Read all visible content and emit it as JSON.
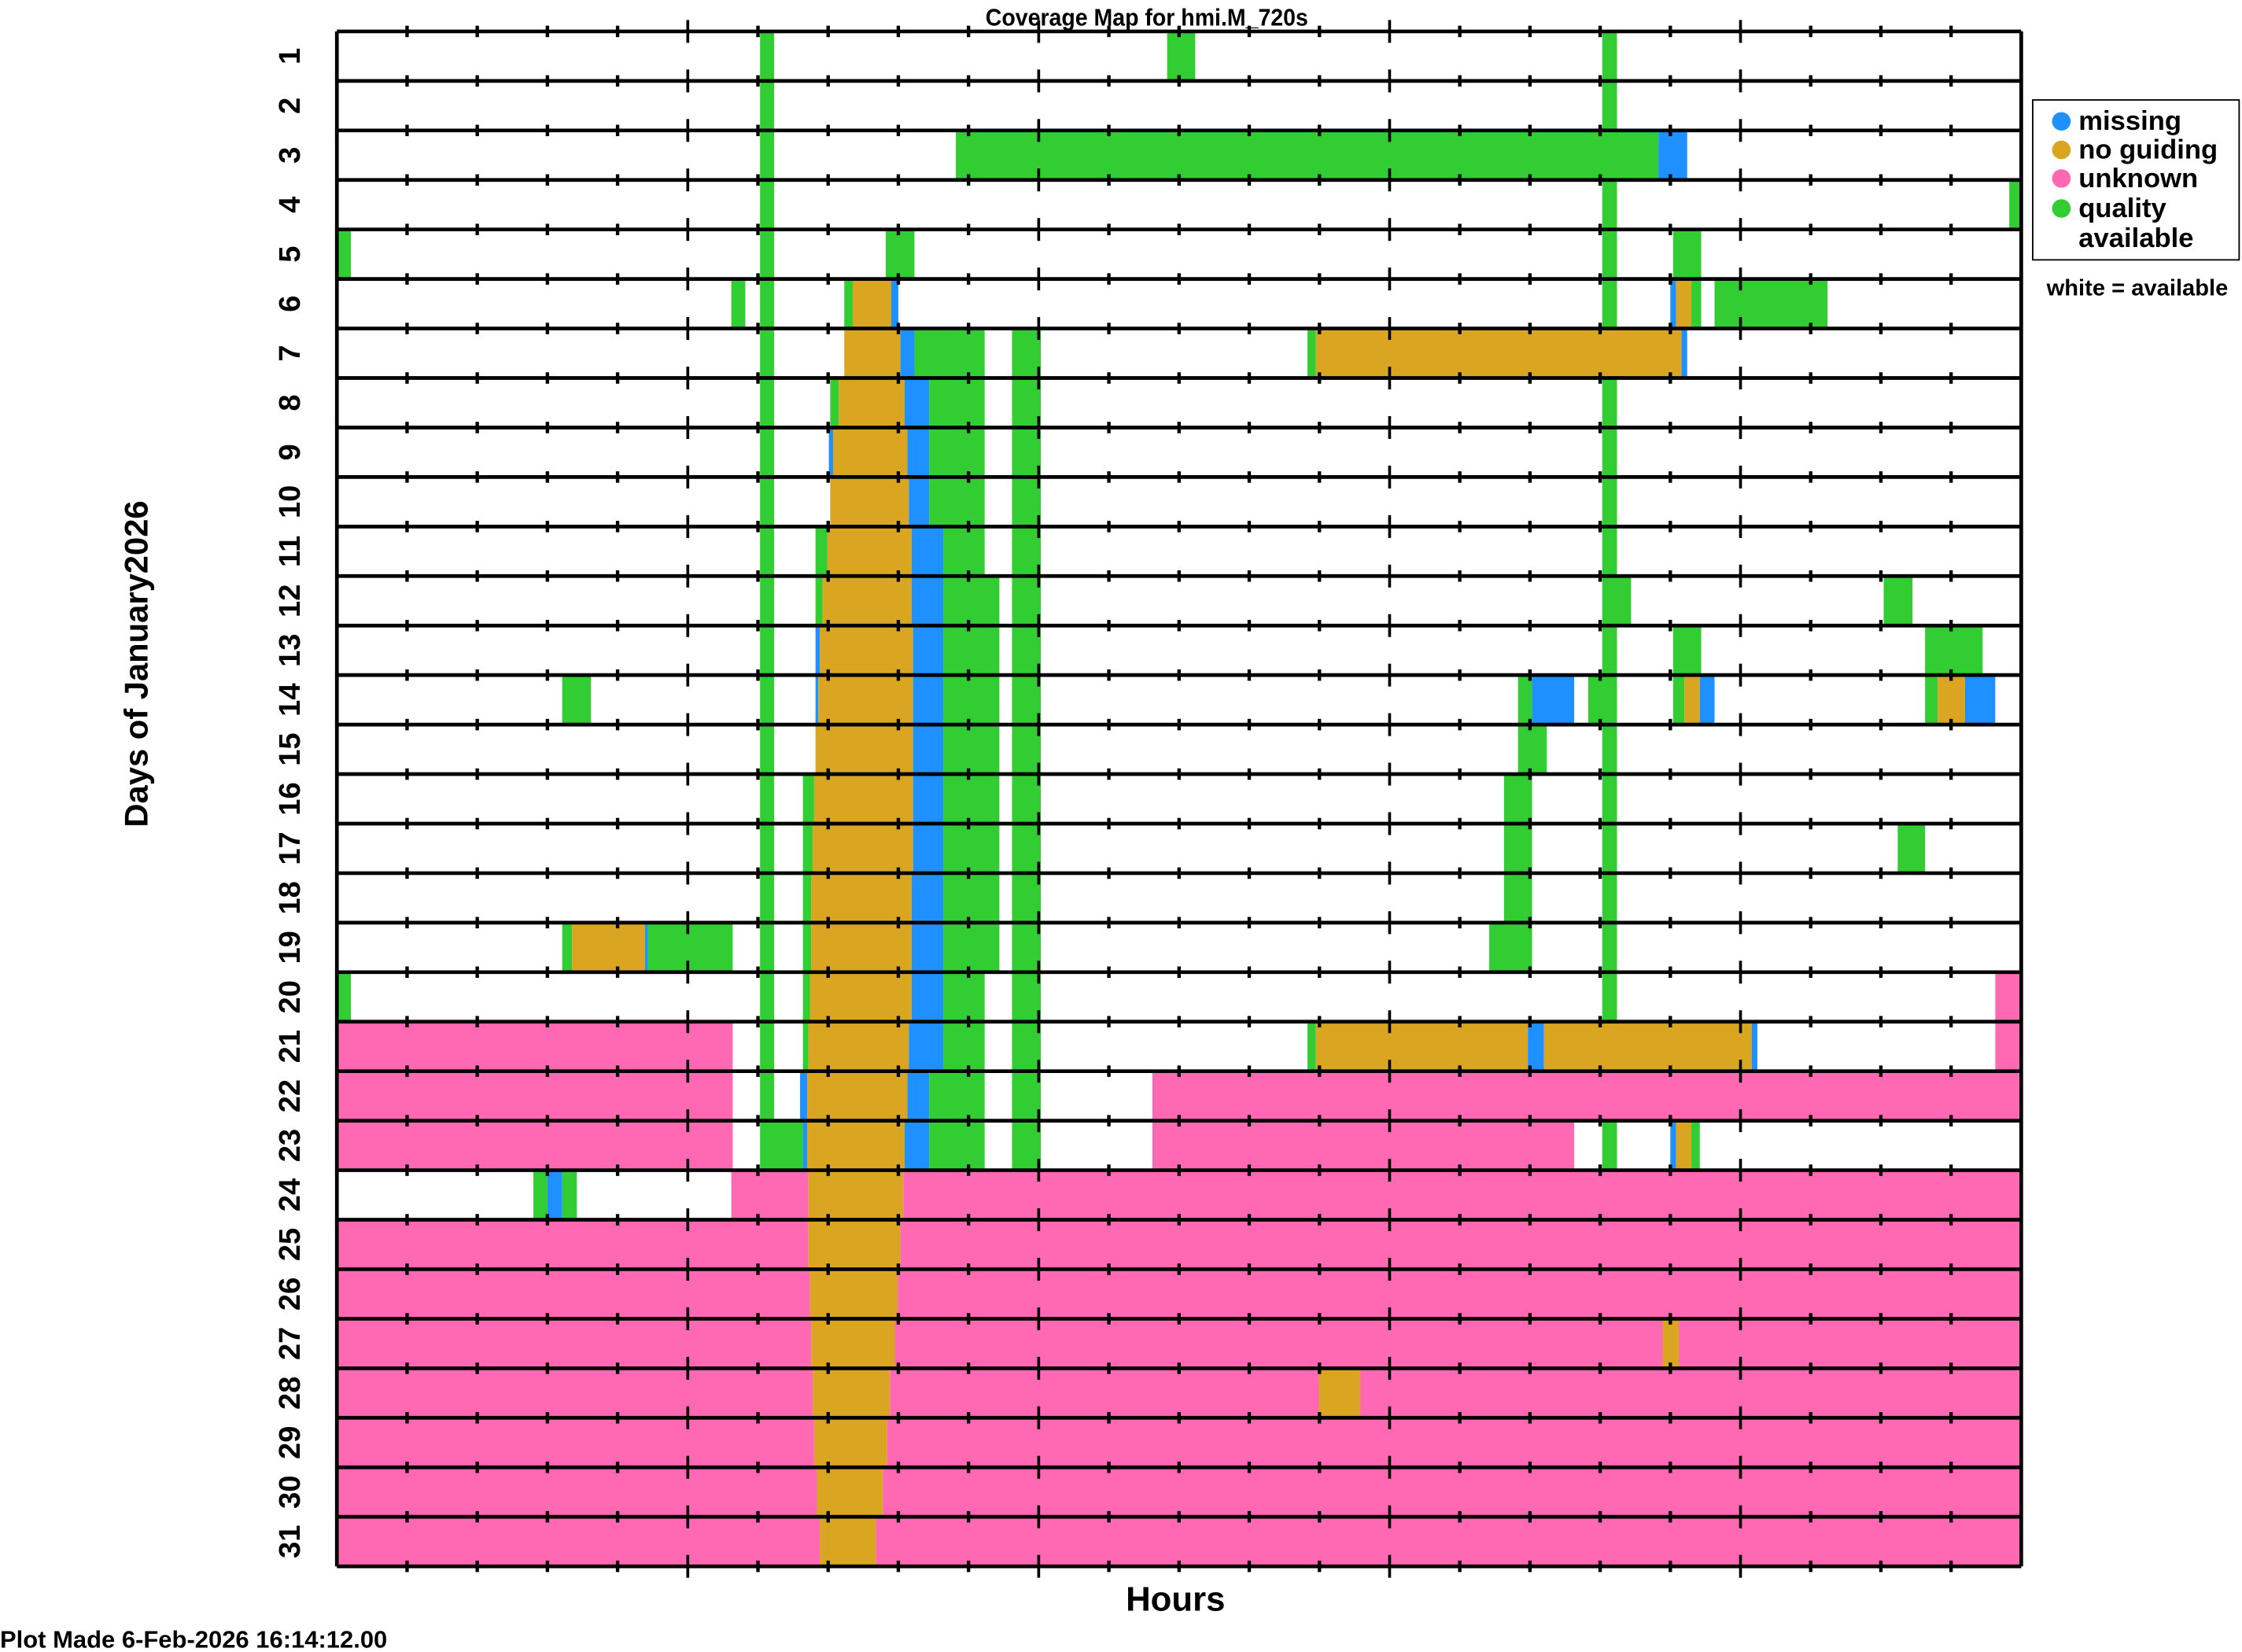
{
  "chart_data": {
    "type": "heatmap",
    "title": "Coverage Map for hmi.M_720s",
    "xlabel": "Hours",
    "ylabel": "Days of January2026",
    "xlim": [
      0,
      24
    ],
    "x_minor_tick_step": 1,
    "x_major_tick_step": 5,
    "day_labels": [
      "1",
      "2",
      "3",
      "4",
      "5",
      "6",
      "7",
      "8",
      "9",
      "10",
      "11",
      "12",
      "13",
      "14",
      "15",
      "16",
      "17",
      "18",
      "19",
      "20",
      "21",
      "22",
      "23",
      "24",
      "25",
      "26",
      "27",
      "28",
      "29",
      "30",
      "31"
    ],
    "legend": {
      "placement": "right",
      "entries": [
        {
          "code": "m",
          "label": "missing",
          "color": "#1E90FF"
        },
        {
          "code": "n",
          "label": "no guiding",
          "color": "#DAA520"
        },
        {
          "code": "u",
          "label": "unknown",
          "color": "#FF69B4"
        },
        {
          "code": "q",
          "label": "quality",
          "label2": "available",
          "color": "#32CD32"
        }
      ],
      "note": "white = available"
    },
    "days": [
      [
        [
          6.03,
          6.23,
          "q"
        ],
        [
          11.83,
          12.23,
          "q"
        ],
        [
          18.03,
          18.24,
          "q"
        ]
      ],
      [
        [
          6.03,
          6.23,
          "q"
        ],
        [
          18.03,
          18.24,
          "q"
        ]
      ],
      [
        [
          6.03,
          6.23,
          "q"
        ],
        [
          8.82,
          18.83,
          "q"
        ],
        [
          18.83,
          19.24,
          "m"
        ]
      ],
      [
        [
          6.03,
          6.23,
          "q"
        ],
        [
          18.03,
          18.24,
          "q"
        ],
        [
          23.83,
          24,
          "q"
        ]
      ],
      [
        [
          0,
          0.2,
          "q"
        ],
        [
          6.03,
          6.23,
          "q"
        ],
        [
          7.82,
          8.23,
          "q"
        ],
        [
          18.03,
          18.24,
          "q"
        ],
        [
          19.04,
          19.44,
          "q"
        ]
      ],
      [
        [
          5.62,
          5.82,
          "q"
        ],
        [
          6.03,
          6.23,
          "q"
        ],
        [
          7.23,
          7.35,
          "q"
        ],
        [
          7.35,
          7.9,
          "n"
        ],
        [
          7.9,
          8.0,
          "m"
        ],
        [
          18.03,
          18.24,
          "q"
        ],
        [
          19.0,
          19.08,
          "m"
        ],
        [
          19.08,
          19.3,
          "n"
        ],
        [
          19.3,
          19.44,
          "q"
        ],
        [
          19.63,
          21.24,
          "q"
        ]
      ],
      [
        [
          6.03,
          6.23,
          "q"
        ],
        [
          7.23,
          8.03,
          "n"
        ],
        [
          8.03,
          8.23,
          "m"
        ],
        [
          8.23,
          9.23,
          "q"
        ],
        [
          9.62,
          10.03,
          "q"
        ],
        [
          13.83,
          13.95,
          "q"
        ],
        [
          13.95,
          19.16,
          "n"
        ],
        [
          19.16,
          19.24,
          "m"
        ]
      ],
      [
        [
          6.03,
          6.23,
          "q"
        ],
        [
          7.03,
          7.15,
          "q"
        ],
        [
          7.15,
          8.09,
          "n"
        ],
        [
          8.09,
          8.44,
          "m"
        ],
        [
          8.44,
          9.23,
          "q"
        ],
        [
          9.62,
          10.03,
          "q"
        ],
        [
          18.03,
          18.24,
          "q"
        ]
      ],
      [
        [
          6.03,
          6.23,
          "q"
        ],
        [
          7.01,
          7.07,
          "m"
        ],
        [
          7.07,
          8.13,
          "n"
        ],
        [
          8.13,
          8.44,
          "m"
        ],
        [
          8.44,
          9.23,
          "q"
        ],
        [
          9.62,
          10.03,
          "q"
        ],
        [
          18.03,
          18.24,
          "q"
        ]
      ],
      [
        [
          6.03,
          6.23,
          "q"
        ],
        [
          7.03,
          8.15,
          "n"
        ],
        [
          8.15,
          8.44,
          "m"
        ],
        [
          8.44,
          9.23,
          "q"
        ],
        [
          9.62,
          10.03,
          "q"
        ],
        [
          18.03,
          18.24,
          "q"
        ]
      ],
      [
        [
          6.03,
          6.23,
          "q"
        ],
        [
          6.82,
          6.99,
          "q"
        ],
        [
          6.99,
          8.19,
          "n"
        ],
        [
          8.19,
          8.64,
          "m"
        ],
        [
          8.64,
          9.23,
          "q"
        ],
        [
          9.62,
          10.03,
          "q"
        ],
        [
          18.03,
          18.24,
          "q"
        ]
      ],
      [
        [
          6.03,
          6.23,
          "q"
        ],
        [
          6.82,
          6.92,
          "q"
        ],
        [
          6.92,
          8.19,
          "n"
        ],
        [
          8.19,
          8.64,
          "m"
        ],
        [
          8.64,
          9.44,
          "q"
        ],
        [
          9.62,
          10.03,
          "q"
        ],
        [
          18.03,
          18.44,
          "q"
        ],
        [
          22.04,
          22.45,
          "q"
        ]
      ],
      [
        [
          6.03,
          6.23,
          "q"
        ],
        [
          6.82,
          6.88,
          "m"
        ],
        [
          6.88,
          8.21,
          "n"
        ],
        [
          8.21,
          8.64,
          "m"
        ],
        [
          8.64,
          9.44,
          "q"
        ],
        [
          9.62,
          10.03,
          "q"
        ],
        [
          18.03,
          18.24,
          "q"
        ],
        [
          19.04,
          19.44,
          "q"
        ],
        [
          22.63,
          23.45,
          "q"
        ]
      ],
      [
        [
          3.21,
          3.62,
          "q"
        ],
        [
          6.03,
          6.23,
          "q"
        ],
        [
          6.82,
          6.86,
          "m"
        ],
        [
          6.86,
          8.21,
          "n"
        ],
        [
          8.21,
          8.64,
          "m"
        ],
        [
          8.64,
          9.44,
          "q"
        ],
        [
          9.62,
          10.03,
          "q"
        ],
        [
          16.83,
          17.03,
          "q"
        ],
        [
          17.03,
          17.63,
          "m"
        ],
        [
          17.83,
          18.24,
          "q"
        ],
        [
          19.04,
          19.2,
          "q"
        ],
        [
          19.2,
          19.42,
          "n"
        ],
        [
          19.42,
          19.63,
          "m"
        ],
        [
          22.63,
          22.81,
          "q"
        ],
        [
          22.81,
          23.2,
          "n"
        ],
        [
          23.2,
          23.63,
          "m"
        ]
      ],
      [
        [
          6.03,
          6.23,
          "q"
        ],
        [
          6.82,
          8.21,
          "n"
        ],
        [
          8.21,
          8.64,
          "m"
        ],
        [
          8.64,
          9.44,
          "q"
        ],
        [
          9.62,
          10.03,
          "q"
        ],
        [
          16.83,
          17.24,
          "q"
        ],
        [
          18.03,
          18.24,
          "q"
        ]
      ],
      [
        [
          6.03,
          6.23,
          "q"
        ],
        [
          6.64,
          6.8,
          "q"
        ],
        [
          6.8,
          8.21,
          "n"
        ],
        [
          8.21,
          8.64,
          "m"
        ],
        [
          8.64,
          9.44,
          "q"
        ],
        [
          9.62,
          10.03,
          "q"
        ],
        [
          16.63,
          17.03,
          "q"
        ],
        [
          18.03,
          18.24,
          "q"
        ]
      ],
      [
        [
          6.03,
          6.23,
          "q"
        ],
        [
          6.64,
          6.78,
          "q"
        ],
        [
          6.78,
          8.21,
          "n"
        ],
        [
          8.21,
          8.64,
          "m"
        ],
        [
          8.64,
          9.44,
          "q"
        ],
        [
          9.62,
          10.03,
          "q"
        ],
        [
          16.63,
          17.03,
          "q"
        ],
        [
          18.03,
          18.24,
          "q"
        ],
        [
          22.24,
          22.63,
          "q"
        ]
      ],
      [
        [
          6.03,
          6.23,
          "q"
        ],
        [
          6.64,
          6.76,
          "q"
        ],
        [
          6.76,
          8.19,
          "n"
        ],
        [
          8.19,
          8.64,
          "m"
        ],
        [
          8.64,
          9.44,
          "q"
        ],
        [
          9.62,
          10.03,
          "q"
        ],
        [
          16.63,
          17.03,
          "q"
        ],
        [
          18.03,
          18.24,
          "q"
        ]
      ],
      [
        [
          3.21,
          3.35,
          "q"
        ],
        [
          3.35,
          4.39,
          "n"
        ],
        [
          4.39,
          4.43,
          "m"
        ],
        [
          4.43,
          5.64,
          "q"
        ],
        [
          6.03,
          6.23,
          "q"
        ],
        [
          6.64,
          6.76,
          "q"
        ],
        [
          6.76,
          8.19,
          "n"
        ],
        [
          8.19,
          8.64,
          "m"
        ],
        [
          8.64,
          9.44,
          "q"
        ],
        [
          9.62,
          10.03,
          "q"
        ],
        [
          16.42,
          17.03,
          "q"
        ],
        [
          18.03,
          18.24,
          "q"
        ]
      ],
      [
        [
          0,
          0.2,
          "q"
        ],
        [
          6.03,
          6.23,
          "q"
        ],
        [
          6.64,
          6.74,
          "q"
        ],
        [
          6.74,
          8.19,
          "n"
        ],
        [
          8.19,
          8.64,
          "m"
        ],
        [
          8.64,
          9.23,
          "q"
        ],
        [
          9.62,
          10.03,
          "q"
        ],
        [
          18.03,
          18.24,
          "q"
        ],
        [
          23.63,
          24,
          "u"
        ]
      ],
      [
        [
          0,
          5.64,
          "u"
        ],
        [
          6.03,
          6.23,
          "q"
        ],
        [
          6.64,
          6.72,
          "q"
        ],
        [
          6.72,
          8.15,
          "n"
        ],
        [
          8.15,
          8.64,
          "m"
        ],
        [
          8.64,
          9.23,
          "q"
        ],
        [
          9.62,
          10.03,
          "q"
        ],
        [
          13.83,
          13.95,
          "q"
        ],
        [
          13.95,
          16.97,
          "n"
        ],
        [
          16.97,
          17.2,
          "m"
        ],
        [
          17.2,
          20.16,
          "n"
        ],
        [
          20.16,
          20.24,
          "m"
        ],
        [
          23.63,
          24,
          "u"
        ]
      ],
      [
        [
          0,
          5.64,
          "u"
        ],
        [
          6.03,
          6.23,
          "q"
        ],
        [
          6.6,
          6.7,
          "m"
        ],
        [
          6.7,
          8.13,
          "n"
        ],
        [
          8.13,
          8.44,
          "m"
        ],
        [
          8.44,
          9.23,
          "q"
        ],
        [
          9.62,
          10.03,
          "q"
        ],
        [
          11.62,
          24,
          "u"
        ]
      ],
      [
        [
          0,
          5.64,
          "u"
        ],
        [
          6.03,
          6.64,
          "q"
        ],
        [
          6.64,
          6.7,
          "m"
        ],
        [
          6.7,
          8.09,
          "n"
        ],
        [
          8.09,
          8.44,
          "m"
        ],
        [
          8.44,
          9.23,
          "q"
        ],
        [
          9.62,
          10.03,
          "q"
        ],
        [
          11.62,
          17.63,
          "u"
        ],
        [
          18.03,
          18.24,
          "q"
        ],
        [
          19.0,
          19.08,
          "m"
        ],
        [
          19.08,
          19.3,
          "n"
        ],
        [
          19.3,
          19.42,
          "q"
        ]
      ],
      [
        [
          2.8,
          3.0,
          "q"
        ],
        [
          3.0,
          3.21,
          "m"
        ],
        [
          3.21,
          3.42,
          "q"
        ],
        [
          5.62,
          6.72,
          "u"
        ],
        [
          6.72,
          8.07,
          "n"
        ],
        [
          8.07,
          24,
          "u"
        ]
      ],
      [
        [
          0,
          6.72,
          "u"
        ],
        [
          6.72,
          8.03,
          "n"
        ],
        [
          8.03,
          24,
          "u"
        ]
      ],
      [
        [
          0,
          6.74,
          "u"
        ],
        [
          6.74,
          7.99,
          "n"
        ],
        [
          7.99,
          24,
          "u"
        ]
      ],
      [
        [
          0,
          6.76,
          "u"
        ],
        [
          6.76,
          7.95,
          "n"
        ],
        [
          7.95,
          24,
          "u"
        ],
        [
          18.89,
          19.12,
          "n"
        ]
      ],
      [
        [
          0,
          6.78,
          "u"
        ],
        [
          6.78,
          7.88,
          "n"
        ],
        [
          7.88,
          24,
          "u"
        ],
        [
          13.99,
          14.58,
          "n"
        ]
      ],
      [
        [
          0,
          6.8,
          "u"
        ],
        [
          6.8,
          7.84,
          "n"
        ],
        [
          7.84,
          24,
          "u"
        ]
      ],
      [
        [
          0,
          6.84,
          "u"
        ],
        [
          6.84,
          7.78,
          "n"
        ],
        [
          7.78,
          24,
          "u"
        ]
      ],
      [
        [
          0,
          6.88,
          "u"
        ],
        [
          6.88,
          7.68,
          "n"
        ],
        [
          7.68,
          24,
          "u"
        ]
      ]
    ]
  },
  "footer": {
    "plot_made": "Plot Made  6-Feb-2026 16:14:12.00"
  }
}
